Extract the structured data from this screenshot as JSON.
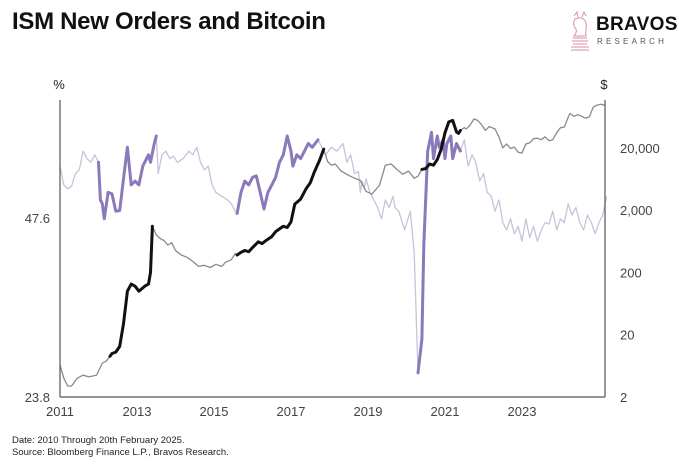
{
  "header": {
    "title": "ISM New Orders and Bitcoin",
    "logo_name": "BRAVOS",
    "logo_sub": "RESEARCH",
    "logo_icon": "chess-knight-bull-icon"
  },
  "footer": {
    "date_note": "Date: 2010 Through 20th February 2025.",
    "source_note": "Source: Bloomberg Finance L.P., Bravos Research."
  },
  "colors": {
    "ism_light": "#c9c2dc",
    "ism_highlight": "#8c79bb",
    "btc_gray": "#8a8a8a",
    "btc_highlight": "#111111",
    "axis": "#555555",
    "logo_accent": "#d98fa6"
  },
  "chart_data": {
    "type": "line",
    "title": "ISM New Orders and Bitcoin",
    "left_axis": {
      "label": "%",
      "ticks": [
        "47.6",
        "23.8"
      ],
      "ylim": [
        23.8,
        71.4
      ]
    },
    "right_axis": {
      "label": "$",
      "scale": "log",
      "ticks": [
        "20,000",
        "2,000",
        "200",
        "20",
        "2"
      ],
      "ylim": [
        2,
        200000
      ]
    },
    "x_axis": {
      "ticks": [
        "2011",
        "2013",
        "2015",
        "2017",
        "2019",
        "2021",
        "2023"
      ],
      "xlim": [
        2011.0,
        2025.2
      ]
    },
    "grid": false,
    "legend": "none",
    "series": [
      {
        "name": "ISM New Orders",
        "axis": "left",
        "style": "light-purple thin, highlighted thick purple during rising periods",
        "highlight_ranges": [
          [
            2012.0,
            2013.5
          ],
          [
            2015.6,
            2017.7
          ],
          [
            2020.3,
            2021.4
          ]
        ],
        "points": [
          [
            2011.0,
            54.5
          ],
          [
            2011.1,
            52.0
          ],
          [
            2011.2,
            51.5
          ],
          [
            2011.3,
            51.8
          ],
          [
            2011.4,
            53.5
          ],
          [
            2011.5,
            54.0
          ],
          [
            2011.6,
            56.5
          ],
          [
            2011.7,
            55.5
          ],
          [
            2011.8,
            55.0
          ],
          [
            2011.9,
            56.0
          ],
          [
            2012.0,
            55.0
          ],
          [
            2012.05,
            50.0
          ],
          [
            2012.1,
            49.5
          ],
          [
            2012.15,
            47.5
          ],
          [
            2012.25,
            51.0
          ],
          [
            2012.35,
            50.8
          ],
          [
            2012.45,
            48.5
          ],
          [
            2012.55,
            48.6
          ],
          [
            2012.7,
            55.0
          ],
          [
            2012.75,
            57.0
          ],
          [
            2012.85,
            52.0
          ],
          [
            2012.95,
            52.5
          ],
          [
            2013.05,
            52.0
          ],
          [
            2013.15,
            54.5
          ],
          [
            2013.3,
            56.0
          ],
          [
            2013.35,
            55.0
          ],
          [
            2013.45,
            57.5
          ],
          [
            2013.5,
            58.5
          ],
          [
            2013.55,
            53.5
          ],
          [
            2013.65,
            56.0
          ],
          [
            2013.75,
            56.5
          ],
          [
            2013.85,
            55.5
          ],
          [
            2013.95,
            55.8
          ],
          [
            2014.05,
            55.0
          ],
          [
            2014.2,
            55.5
          ],
          [
            2014.35,
            56.5
          ],
          [
            2014.45,
            56.0
          ],
          [
            2014.55,
            57.0
          ],
          [
            2014.65,
            55.0
          ],
          [
            2014.75,
            54.0
          ],
          [
            2014.85,
            54.5
          ],
          [
            2014.95,
            52.0
          ],
          [
            2015.05,
            51.0
          ],
          [
            2015.2,
            50.5
          ],
          [
            2015.35,
            50.0
          ],
          [
            2015.45,
            49.5
          ],
          [
            2015.55,
            48.5
          ],
          [
            2015.6,
            48.2
          ],
          [
            2015.7,
            51.0
          ],
          [
            2015.8,
            52.5
          ],
          [
            2015.9,
            52.0
          ],
          [
            2016.0,
            53.0
          ],
          [
            2016.1,
            53.2
          ],
          [
            2016.2,
            51.0
          ],
          [
            2016.3,
            48.8
          ],
          [
            2016.4,
            51.0
          ],
          [
            2016.5,
            52.0
          ],
          [
            2016.6,
            53.0
          ],
          [
            2016.7,
            55.0
          ],
          [
            2016.8,
            56.0
          ],
          [
            2016.9,
            58.5
          ],
          [
            2017.0,
            56.5
          ],
          [
            2017.05,
            54.5
          ],
          [
            2017.15,
            56.0
          ],
          [
            2017.25,
            55.5
          ],
          [
            2017.35,
            56.5
          ],
          [
            2017.45,
            57.5
          ],
          [
            2017.55,
            57.0
          ],
          [
            2017.7,
            58.0
          ],
          [
            2017.8,
            57.0
          ],
          [
            2017.9,
            56.0
          ],
          [
            2018.05,
            57.0
          ],
          [
            2018.2,
            56.5
          ],
          [
            2018.35,
            57.5
          ],
          [
            2018.45,
            55.0
          ],
          [
            2018.55,
            56.0
          ],
          [
            2018.65,
            53.5
          ],
          [
            2018.75,
            53.8
          ],
          [
            2018.8,
            51.0
          ],
          [
            2018.85,
            52.5
          ],
          [
            2018.9,
            51.5
          ],
          [
            2018.95,
            52.8
          ],
          [
            2019.05,
            51.0
          ],
          [
            2019.15,
            50.0
          ],
          [
            2019.25,
            49.0
          ],
          [
            2019.35,
            47.5
          ],
          [
            2019.45,
            50.0
          ],
          [
            2019.55,
            49.0
          ],
          [
            2019.65,
            50.5
          ],
          [
            2019.7,
            49.0
          ],
          [
            2019.8,
            48.5
          ],
          [
            2019.95,
            46.0
          ],
          [
            2020.1,
            48.5
          ],
          [
            2020.2,
            43.0
          ],
          [
            2020.3,
            27.0
          ],
          [
            2020.4,
            31.5
          ],
          [
            2020.45,
            44.0
          ],
          [
            2020.55,
            56.5
          ],
          [
            2020.65,
            59.0
          ],
          [
            2020.7,
            55.5
          ],
          [
            2020.8,
            58.5
          ],
          [
            2020.85,
            57.0
          ],
          [
            2020.95,
            58.0
          ],
          [
            2021.0,
            55.5
          ],
          [
            2021.05,
            57.5
          ],
          [
            2021.15,
            58.5
          ],
          [
            2021.2,
            55.5
          ],
          [
            2021.3,
            57.5
          ],
          [
            2021.4,
            56.5
          ],
          [
            2021.5,
            58.0
          ],
          [
            2021.6,
            54.5
          ],
          [
            2021.7,
            56.0
          ],
          [
            2021.8,
            55.0
          ],
          [
            2021.9,
            52.5
          ],
          [
            2022.0,
            53.5
          ],
          [
            2022.1,
            51.0
          ],
          [
            2022.2,
            50.5
          ],
          [
            2022.3,
            48.5
          ],
          [
            2022.4,
            50.0
          ],
          [
            2022.5,
            47.0
          ],
          [
            2022.6,
            46.0
          ],
          [
            2022.7,
            47.5
          ],
          [
            2022.8,
            45.5
          ],
          [
            2022.9,
            46.5
          ],
          [
            2023.0,
            44.5
          ],
          [
            2023.1,
            47.5
          ],
          [
            2023.2,
            45.0
          ],
          [
            2023.3,
            46.5
          ],
          [
            2023.4,
            44.5
          ],
          [
            2023.5,
            46.0
          ],
          [
            2023.6,
            47.0
          ],
          [
            2023.7,
            46.8
          ],
          [
            2023.8,
            48.5
          ],
          [
            2023.9,
            46.0
          ],
          [
            2024.0,
            47.5
          ],
          [
            2024.1,
            47.0
          ],
          [
            2024.2,
            49.5
          ],
          [
            2024.3,
            48.0
          ],
          [
            2024.4,
            49.0
          ],
          [
            2024.5,
            47.0
          ],
          [
            2024.6,
            46.0
          ],
          [
            2024.7,
            48.0
          ],
          [
            2024.8,
            47.0
          ],
          [
            2024.9,
            45.5
          ],
          [
            2025.0,
            47.0
          ],
          [
            2025.1,
            48.0
          ],
          [
            2025.2,
            50.5
          ]
        ]
      },
      {
        "name": "Bitcoin Price",
        "axis": "right",
        "style": "gray thin, highlighted thick black during rising periods",
        "highlight_ranges": [
          [
            2012.3,
            2013.4
          ],
          [
            2015.6,
            2017.9
          ],
          [
            2020.4,
            2021.4
          ]
        ],
        "points": [
          [
            2011.0,
            6.5
          ],
          [
            2011.1,
            4.0
          ],
          [
            2011.2,
            3.0
          ],
          [
            2011.3,
            3.0
          ],
          [
            2011.45,
            4.0
          ],
          [
            2011.6,
            4.5
          ],
          [
            2011.75,
            4.2
          ],
          [
            2011.95,
            4.5
          ],
          [
            2012.1,
            7.0
          ],
          [
            2012.2,
            7.5
          ],
          [
            2012.3,
            9.0
          ],
          [
            2012.35,
            10.0
          ],
          [
            2012.45,
            10.5
          ],
          [
            2012.55,
            13.0
          ],
          [
            2012.65,
            30.0
          ],
          [
            2012.75,
            100.0
          ],
          [
            2012.85,
            130.0
          ],
          [
            2012.95,
            120.0
          ],
          [
            2013.05,
            100.0
          ],
          [
            2013.2,
            120.0
          ],
          [
            2013.3,
            130.0
          ],
          [
            2013.35,
            200.0
          ],
          [
            2013.4,
            1100.0
          ],
          [
            2013.5,
            800.0
          ],
          [
            2013.6,
            700.0
          ],
          [
            2013.7,
            650.0
          ],
          [
            2013.8,
            550.0
          ],
          [
            2013.9,
            600.0
          ],
          [
            2014.0,
            450.0
          ],
          [
            2014.15,
            380.0
          ],
          [
            2014.3,
            350.0
          ],
          [
            2014.45,
            300.0
          ],
          [
            2014.6,
            250.0
          ],
          [
            2014.75,
            260.0
          ],
          [
            2014.9,
            240.0
          ],
          [
            2015.05,
            270.0
          ],
          [
            2015.2,
            250.0
          ],
          [
            2015.3,
            290.0
          ],
          [
            2015.45,
            320.0
          ],
          [
            2015.55,
            400.0
          ],
          [
            2015.6,
            380.0
          ],
          [
            2015.7,
            420.0
          ],
          [
            2015.8,
            450.0
          ],
          [
            2015.9,
            430.0
          ],
          [
            2016.0,
            500.0
          ],
          [
            2016.15,
            620.0
          ],
          [
            2016.25,
            580.0
          ],
          [
            2016.35,
            650.0
          ],
          [
            2016.5,
            750.0
          ],
          [
            2016.6,
            900.0
          ],
          [
            2016.7,
            1000.0
          ],
          [
            2016.8,
            1100.0
          ],
          [
            2016.9,
            1050.0
          ],
          [
            2017.0,
            1300.0
          ],
          [
            2017.1,
            2500.0
          ],
          [
            2017.25,
            3000.0
          ],
          [
            2017.4,
            4500.0
          ],
          [
            2017.5,
            5500.0
          ],
          [
            2017.6,
            8000.0
          ],
          [
            2017.75,
            13000.0
          ],
          [
            2017.85,
            19000.0
          ],
          [
            2017.95,
            12000.0
          ],
          [
            2018.05,
            10500.0
          ],
          [
            2018.15,
            11000.0
          ],
          [
            2018.3,
            8500.0
          ],
          [
            2018.5,
            7200.0
          ],
          [
            2018.65,
            6500.0
          ],
          [
            2018.8,
            6000.0
          ],
          [
            2018.95,
            4000.0
          ],
          [
            2019.1,
            3600.0
          ],
          [
            2019.3,
            5000.0
          ],
          [
            2019.45,
            10500.0
          ],
          [
            2019.6,
            11000.0
          ],
          [
            2019.75,
            9000.0
          ],
          [
            2019.9,
            7500.0
          ],
          [
            2020.05,
            8500.0
          ],
          [
            2020.2,
            6500.0
          ],
          [
            2020.3,
            7000.0
          ],
          [
            2020.4,
            9000.0
          ],
          [
            2020.5,
            9300.0
          ],
          [
            2020.6,
            11000.0
          ],
          [
            2020.7,
            10500.0
          ],
          [
            2020.8,
            13000.0
          ],
          [
            2020.9,
            19000.0
          ],
          [
            2021.0,
            35000.0
          ],
          [
            2021.1,
            52000.0
          ],
          [
            2021.2,
            55000.0
          ],
          [
            2021.3,
            36000.0
          ],
          [
            2021.35,
            34000.0
          ],
          [
            2021.4,
            38000.0
          ],
          [
            2021.5,
            42000.0
          ],
          [
            2021.55,
            40000.0
          ],
          [
            2021.65,
            46000.0
          ],
          [
            2021.75,
            58000.0
          ],
          [
            2021.85,
            55000.0
          ],
          [
            2021.95,
            47000.0
          ],
          [
            2022.05,
            38000.0
          ],
          [
            2022.15,
            44000.0
          ],
          [
            2022.3,
            40000.0
          ],
          [
            2022.4,
            30000.0
          ],
          [
            2022.5,
            20000.0
          ],
          [
            2022.6,
            23000.0
          ],
          [
            2022.7,
            19500.0
          ],
          [
            2022.8,
            20500.0
          ],
          [
            2022.9,
            17000.0
          ],
          [
            2023.0,
            16500.0
          ],
          [
            2023.1,
            23000.0
          ],
          [
            2023.2,
            24000.0
          ],
          [
            2023.3,
            28000.0
          ],
          [
            2023.4,
            28500.0
          ],
          [
            2023.5,
            27000.0
          ],
          [
            2023.6,
            30000.0
          ],
          [
            2023.7,
            26000.0
          ],
          [
            2023.8,
            27000.0
          ],
          [
            2023.9,
            35000.0
          ],
          [
            2024.0,
            42000.0
          ],
          [
            2024.1,
            43000.0
          ],
          [
            2024.2,
            62000.0
          ],
          [
            2024.25,
            71000.0
          ],
          [
            2024.35,
            64000.0
          ],
          [
            2024.45,
            68000.0
          ],
          [
            2024.55,
            64000.0
          ],
          [
            2024.65,
            60000.0
          ],
          [
            2024.75,
            63000.0
          ],
          [
            2024.85,
            90000.0
          ],
          [
            2024.95,
            97000.0
          ],
          [
            2025.05,
            100000.0
          ],
          [
            2025.15,
            96000.0
          ]
        ]
      }
    ]
  }
}
